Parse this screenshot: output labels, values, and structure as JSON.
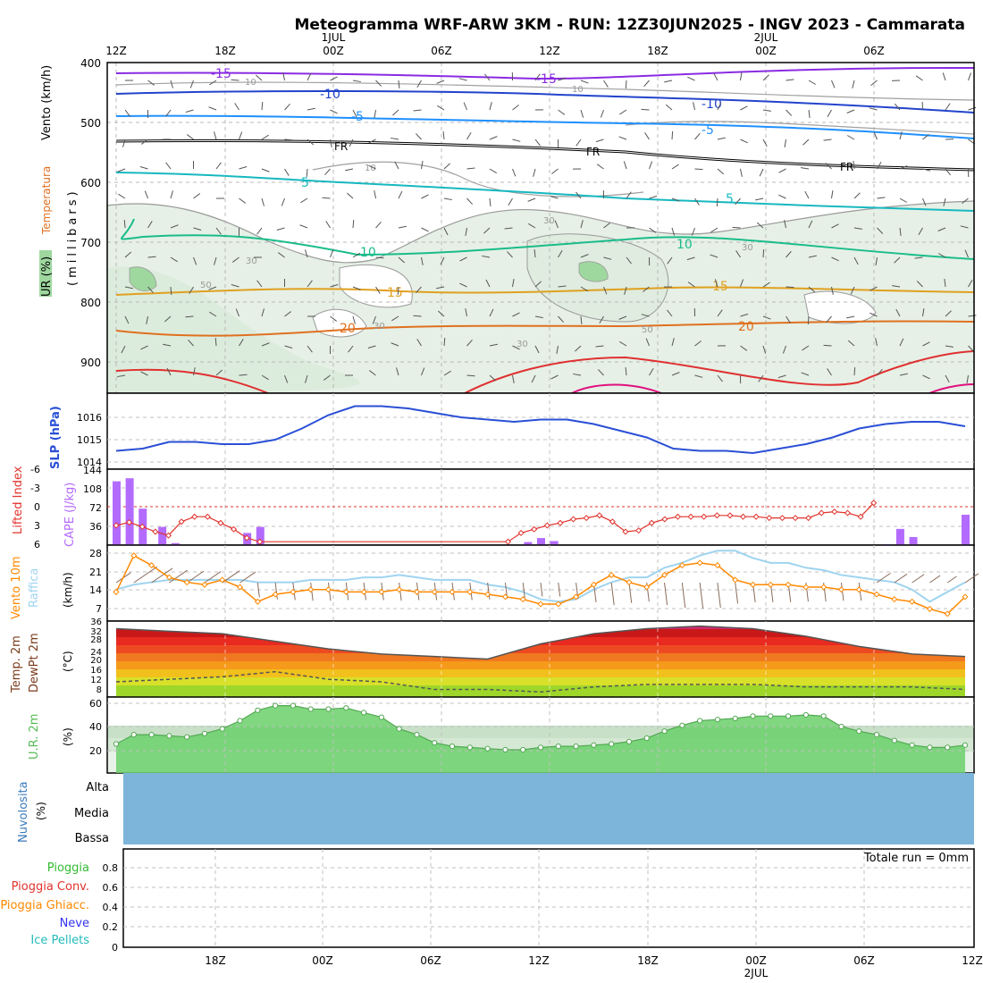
{
  "title": "Meteogramma WRF-ARW 3KM - RUN: 12Z30JUN2025 - INGV 2023 - Cammarata",
  "top_axis": {
    "ticks": [
      "12Z",
      "18Z",
      "00Z",
      "06Z",
      "12Z",
      "18Z",
      "00Z",
      "06Z"
    ],
    "day_labels": [
      "1JUL",
      "2JUL"
    ]
  },
  "bottom_axis": {
    "ticks": [
      "18Z",
      "00Z",
      "06Z",
      "12Z",
      "18Z",
      "00Z",
      "06Z",
      "12Z"
    ],
    "day_label": "2JUL"
  },
  "panel_labels": {
    "upper": {
      "vento": "Vento (km/h)",
      "temperatura": "Temperatura",
      "ur": "UR (%)",
      "millibars": "(millibars)"
    },
    "slp": "SLP (hPa)",
    "lifted_index": "Lifted Index",
    "cape": "CAPE (J/kg)",
    "vento10m": "Vento 10m",
    "raffica": "Raffica",
    "wind_unit": "(km/h)",
    "temp2m": "Temp. 2m",
    "dewpt2m": "DewPt 2m",
    "temp_unit": "(°C)",
    "ur2m": "U.R. 2m",
    "ur_unit": "(%)",
    "nuvolosita": "Nuvolosita",
    "nuv_unit": "(%)",
    "nuv_levels": [
      "Alta",
      "Media",
      "Bassa"
    ],
    "precip_legend": [
      "Pioggia",
      "Pioggia Conv.",
      "Pioggia Ghiacc.",
      "Neve",
      "Ice Pellets"
    ],
    "totale_run": "Totale run = 0mm"
  },
  "colors": {
    "blue_label": "#2a4fd6",
    "cape": "#b36bff",
    "lifted": "#e0332c",
    "vento": "#ff8800",
    "raffica": "#9fd4f0",
    "temp_label": "#7a3a1a",
    "ur2m": "#55bb55",
    "nuv": "#7db5da",
    "pioggia": "#33bb33",
    "pioggia_conv": "#e0332c",
    "pioggia_ghiacc": "#ff8800",
    "neve": "#3333ee",
    "ice_pellets": "#22bbbb"
  },
  "chart_data": [
    {
      "type": "contour",
      "panel": "upper-air",
      "y_axis": {
        "label": "(millibars)",
        "ticks": [
          400,
          500,
          600,
          700,
          800,
          900
        ]
      },
      "isotherms_labels": [
        "-15",
        "-10",
        "-5",
        "FR",
        "5",
        "10",
        "15",
        "20"
      ],
      "rh_labels": [
        "10",
        "30",
        "50"
      ]
    },
    {
      "type": "line",
      "panel": "slp",
      "ylabel": "SLP (hPa)",
      "ylim": [
        1014,
        1016.7
      ],
      "yticks": [
        1014,
        1015,
        1016
      ],
      "x_hours": [
        0,
        3,
        6,
        9,
        12,
        15,
        18,
        21,
        24,
        27,
        30,
        33,
        36,
        39,
        42,
        45,
        48,
        51,
        54,
        57,
        60,
        63,
        66,
        69,
        72,
        75,
        78,
        81,
        84,
        87,
        90,
        93,
        96
      ],
      "values": [
        1014.5,
        1014.6,
        1014.9,
        1014.9,
        1014.8,
        1014.8,
        1015.0,
        1015.5,
        1016.1,
        1016.5,
        1016.5,
        1016.4,
        1016.2,
        1016.0,
        1015.9,
        1015.8,
        1015.9,
        1015.9,
        1015.7,
        1015.4,
        1015.1,
        1014.6,
        1014.5,
        1014.5,
        1014.4,
        1014.6,
        1014.8,
        1015.1,
        1015.5,
        1015.7,
        1015.8,
        1015.8,
        1015.6
      ]
    },
    {
      "type": "bar+line",
      "panel": "cape-lifted",
      "cape_ylabel": "CAPE (J/kg)",
      "cape_ticks": [
        36,
        72,
        108,
        144
      ],
      "li_ylabel": "Lifted Index",
      "li_ticks": [
        -6,
        -3,
        0,
        3,
        6
      ],
      "cape": [
        {
          "hour": 0,
          "value": 126
        },
        {
          "hour": 2,
          "value": 132
        },
        {
          "hour": 4,
          "value": 72
        },
        {
          "hour": 7,
          "value": 36
        },
        {
          "hour": 9,
          "value": 4
        },
        {
          "hour": 20,
          "value": 24
        },
        {
          "hour": 22,
          "value": 36
        },
        {
          "hour": 63,
          "value": 6
        },
        {
          "hour": 65,
          "value": 14
        },
        {
          "hour": 67,
          "value": 8
        },
        {
          "hour": 118,
          "value": 2
        },
        {
          "hour": 120,
          "value": 32
        },
        {
          "hour": 122,
          "value": 16
        },
        {
          "hour": 130,
          "value": 60
        }
      ],
      "lifted_index": [
        {
          "hour": 0,
          "value": 3
        },
        {
          "hour": 2,
          "value": 2.5
        },
        {
          "hour": 4,
          "value": 3.2
        },
        {
          "hour": 6,
          "value": 4
        },
        {
          "hour": 8,
          "value": 4.6
        },
        {
          "hour": 10,
          "value": 2.4
        },
        {
          "hour": 12,
          "value": 1.6
        },
        {
          "hour": 14,
          "value": 1.6
        },
        {
          "hour": 16,
          "value": 2.6
        },
        {
          "hour": 18,
          "value": 3.6
        },
        {
          "hour": 20,
          "value": 5.0
        },
        {
          "hour": 22,
          "value": 5.6
        },
        {
          "hour": 60,
          "value": 5.6
        },
        {
          "hour": 62,
          "value": 4.2
        },
        {
          "hour": 64,
          "value": 3.6
        },
        {
          "hour": 66,
          "value": 3.0
        },
        {
          "hour": 68,
          "value": 2.6
        },
        {
          "hour": 70,
          "value": 2.0
        },
        {
          "hour": 72,
          "value": 1.8
        },
        {
          "hour": 74,
          "value": 1.4
        },
        {
          "hour": 76,
          "value": 2.4
        },
        {
          "hour": 78,
          "value": 4.0
        },
        {
          "hour": 80,
          "value": 3.8
        },
        {
          "hour": 82,
          "value": 2.6
        },
        {
          "hour": 84,
          "value": 2.0
        },
        {
          "hour": 86,
          "value": 1.6
        },
        {
          "hour": 88,
          "value": 1.6
        },
        {
          "hour": 90,
          "value": 1.6
        },
        {
          "hour": 92,
          "value": 1.4
        },
        {
          "hour": 94,
          "value": 1.4
        },
        {
          "hour": 96,
          "value": 1.6
        },
        {
          "hour": 98,
          "value": 1.6
        },
        {
          "hour": 100,
          "value": 1.8
        },
        {
          "hour": 102,
          "value": 1.8
        },
        {
          "hour": 104,
          "value": 1.8
        },
        {
          "hour": 106,
          "value": 1.8
        },
        {
          "hour": 108,
          "value": 1.0
        },
        {
          "hour": 110,
          "value": 0.8
        },
        {
          "hour": 112,
          "value": 1.0
        },
        {
          "hour": 114,
          "value": 1.6
        },
        {
          "hour": 116,
          "value": -0.6
        }
      ]
    },
    {
      "type": "line",
      "panel": "wind10m",
      "ylabel": "(km/h)",
      "yticks": [
        7,
        14,
        21,
        28
      ],
      "x_hours": [
        0,
        2,
        4,
        6,
        8,
        10,
        12,
        14,
        16,
        18,
        20,
        22,
        24,
        26,
        28,
        30,
        32,
        34,
        36,
        38,
        40,
        42,
        44,
        46,
        48,
        50,
        52,
        54,
        56,
        58,
        60,
        62,
        64,
        66,
        68,
        70,
        72,
        74,
        76,
        78,
        80,
        82,
        84,
        86,
        88,
        90,
        92,
        94,
        96
      ],
      "vento": [
        12,
        27,
        23,
        18,
        16,
        15,
        17,
        14,
        8,
        11,
        12,
        13,
        13,
        12,
        12,
        12,
        13,
        12,
        12,
        12,
        12,
        11,
        10,
        9,
        7,
        7,
        10,
        15,
        19,
        16,
        14,
        19,
        23,
        24,
        23,
        17,
        15,
        15,
        15,
        14,
        14,
        13,
        13,
        11,
        9,
        8,
        5,
        3,
        10
      ],
      "raffica": [
        13,
        15,
        16,
        17,
        17,
        17,
        17,
        17,
        16,
        16,
        16,
        17,
        17,
        17,
        18,
        18,
        19,
        18,
        17,
        17,
        17,
        15,
        14,
        12,
        9,
        8,
        9,
        13,
        16,
        18,
        18,
        22,
        24,
        27,
        29,
        29,
        26,
        24,
        24,
        22,
        21,
        19,
        18,
        17,
        16,
        13,
        8,
        12,
        16
      ]
    },
    {
      "type": "area",
      "panel": "temp2m",
      "ylabel": "(°C)",
      "yticks": [
        8,
        12,
        16,
        20,
        24,
        28,
        32,
        36
      ],
      "x_hours": [
        0,
        6,
        12,
        18,
        24,
        30,
        36,
        42,
        48,
        54,
        60,
        66,
        72,
        78,
        84,
        90,
        96
      ],
      "temp": [
        33,
        32,
        31,
        28,
        25,
        23,
        22,
        21,
        27,
        31,
        33,
        34,
        33,
        30,
        26,
        23,
        22
      ],
      "dewpt": [
        12,
        13,
        14,
        16,
        13,
        12,
        9,
        9,
        8,
        10,
        11,
        11,
        11,
        10,
        10,
        10,
        9
      ]
    },
    {
      "type": "area",
      "panel": "ur2m",
      "ylabel": "(%)",
      "yticks": [
        20,
        40,
        60
      ],
      "x_hours": [
        0,
        2,
        4,
        6,
        8,
        10,
        12,
        14,
        16,
        18,
        20,
        22,
        24,
        26,
        28,
        30,
        32,
        34,
        36,
        38,
        40,
        42,
        44,
        46,
        48,
        50,
        52,
        54,
        56,
        58,
        60,
        62,
        64,
        66,
        68,
        70,
        72,
        74,
        76,
        78,
        80,
        82,
        84,
        86,
        88,
        90,
        92,
        94,
        96
      ],
      "values": [
        25,
        33,
        33,
        32,
        31,
        34,
        38,
        45,
        54,
        58,
        58,
        55,
        55,
        56,
        52,
        48,
        38,
        33,
        26,
        23,
        22,
        21,
        20,
        20,
        22,
        23,
        23,
        24,
        25,
        27,
        30,
        36,
        41,
        45,
        46,
        47,
        49,
        49,
        49,
        50,
        49,
        40,
        36,
        33,
        28,
        24,
        22,
        22,
        24
      ]
    },
    {
      "type": "area",
      "panel": "nuvolosita",
      "levels": [
        "Alta",
        "Media",
        "Bassa"
      ],
      "values": {
        "Alta": 0,
        "Media": 0,
        "Bassa": 0
      }
    },
    {
      "type": "bar",
      "panel": "precipitation",
      "yticks": [
        0,
        0.2,
        0.4,
        0.6,
        0.8
      ],
      "total": "0mm",
      "values": []
    }
  ]
}
